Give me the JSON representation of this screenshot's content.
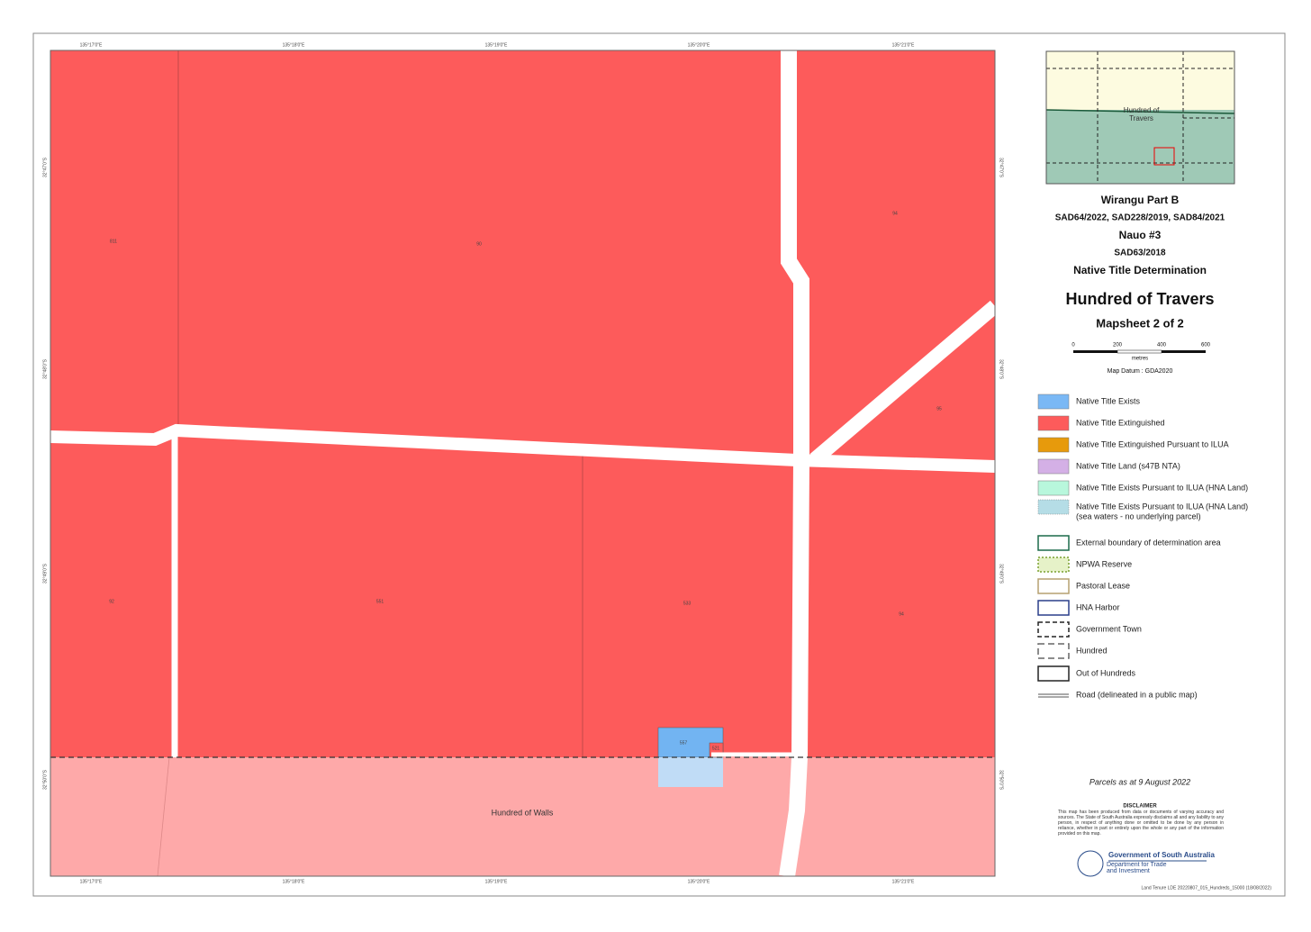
{
  "title_block": {
    "project": "Wirangu Part B",
    "project_ids": "SAD64/2022, SAD228/2019, SAD84/2021",
    "project2": "Nauo #3",
    "project2_id": "SAD63/2018",
    "determination": "Native Title Determination",
    "map_title": "Hundred of Travers",
    "mapsheet": "Mapsheet 2 of 2",
    "scale_ticks": [
      "0",
      "200",
      "400",
      "600"
    ],
    "scale_unit": "metres",
    "datum": "Map Datum : GDA2020"
  },
  "inset": {
    "label": "Hundred of Travers"
  },
  "map": {
    "hundred_label": "Hundred of Walls",
    "parcels": [
      "811",
      "90",
      "94",
      "95",
      "92",
      "551",
      "533",
      "94",
      "557",
      "521"
    ],
    "top_coords": [
      "135°17'0\"E",
      "135°18'0\"E",
      "135°19'0\"E",
      "135°20'0\"E",
      "135°21'0\"E"
    ],
    "bottom_coords": [
      "135°17'0\"E",
      "135°18'0\"E",
      "135°19'0\"E",
      "135°20'0\"E",
      "135°21'0\"E"
    ],
    "left_coords": [
      "32°47'0\"S",
      "32°48'0\"S",
      "32°49'0\"S",
      "32°50'0\"S"
    ],
    "right_coords": [
      "32°47'0\"S",
      "32°48'0\"S",
      "32°49'0\"S",
      "32°50'0\"S"
    ]
  },
  "legend": [
    "Native Title Exists",
    "Native Title Extinguished",
    "Native Title Extinguished Pursuant to ILUA",
    "Native Title Land (s47B NTA)",
    "Native Title Exists Pursuant to ILUA (HNA Land)",
    "Native Title Exists Pursuant to ILUA (HNA Land)",
    "(sea waters - no underlying parcel)",
    "External boundary of determination area",
    "NPWA Reserve",
    "Pastoral Lease",
    "HNA Harbor",
    "Government Town",
    "Hundred",
    "Out of Hundreds",
    "Road (delineated in a public map)"
  ],
  "footer": {
    "parcels_date": "Parcels as at 9 August 2022",
    "disclaimer_title": "DISCLAIMER",
    "disclaimer": "This map has been produced from data or documents of varying accuracy and sources. The State of South Australia expressly disclaims all and any liability to any person, in respect of anything done or omitted to be done by any person in reliance, whether in part or entirely upon the whole or any part of the information provided on this map.",
    "gov": "Government of South Australia",
    "dept": "Department for Trade and Investment",
    "file_id": "Land Tenure LDE 20220807_015_Hundreds_15000 (18/08/2022)"
  }
}
